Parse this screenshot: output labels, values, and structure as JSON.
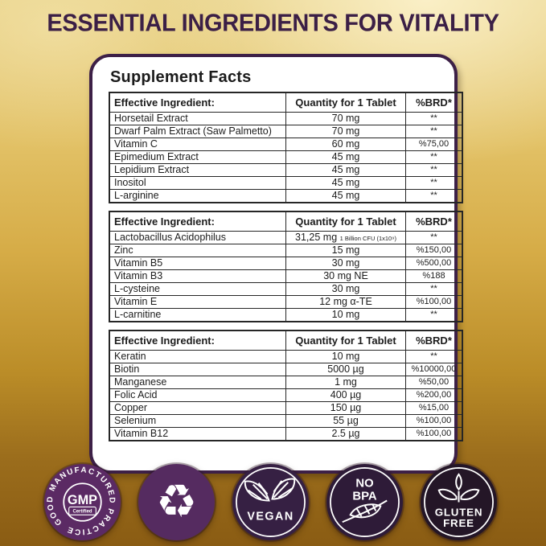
{
  "title": "ESSENTIAL INGREDIENTS FOR VITALITY",
  "card": {
    "heading": "Supplement Facts",
    "tables": [
      {
        "headers": [
          "Effective Ingredient:",
          "Quantity for 1 Tablet",
          "%BRD*"
        ],
        "rows": [
          [
            "Horsetail Extract",
            "70 mg",
            "**"
          ],
          [
            "Dwarf Palm Extract (Saw Palmetto)",
            "70 mg",
            "**"
          ],
          [
            "Vitamin C",
            "60 mg",
            "%75,00"
          ],
          [
            "Epimedium Extract",
            "45 mg",
            "**"
          ],
          [
            "Lepidium Extract",
            "45 mg",
            "**"
          ],
          [
            "Inositol",
            "45 mg",
            "**"
          ],
          [
            "L-arginine",
            "45 mg",
            "**"
          ]
        ]
      },
      {
        "headers": [
          "Effective Ingredient:",
          "Quantity for 1 Tablet",
          "%BRD*"
        ],
        "rows": [
          [
            "Lactobacillus Acidophilus",
            {
              "text": "31,25 mg",
              "note": "1 Billion CFU (1x10⁹)"
            },
            "**"
          ],
          [
            "Zinc",
            "15 mg",
            "%150,00"
          ],
          [
            "Vitamin B5",
            "30 mg",
            "%500,00"
          ],
          [
            "Vitamin B3",
            "30 mg NE",
            "%188"
          ],
          [
            "L-cysteine",
            "30 mg",
            "**"
          ],
          [
            "Vitamin E",
            "12 mg α-TE",
            "%100,00"
          ],
          [
            "L-carnitine",
            "10 mg",
            "**"
          ]
        ]
      },
      {
        "headers": [
          "Effective Ingredient:",
          "Quantity for 1 Tablet",
          "%BRD*"
        ],
        "rows": [
          [
            "Keratin",
            "10 mg",
            "**"
          ],
          [
            "Biotin",
            "5000 µg",
            "%10000,00"
          ],
          [
            "Manganese",
            "1 mg",
            "%50,00"
          ],
          [
            "Folic Acid",
            "400 µg",
            "%200,00"
          ],
          [
            "Copper",
            "150 µg",
            "%15,00"
          ],
          [
            "Selenium",
            "55 µg",
            "%100,00"
          ],
          [
            "Vitamin B12",
            "2.5 µg",
            "%100,00"
          ]
        ]
      }
    ]
  },
  "badges": {
    "gmp": {
      "circular_text": "GOOD MANUFACTURED PRACTICE",
      "center": "GMP",
      "sub": "Certified",
      "color": "#5b2a64"
    },
    "recycle": {
      "symbol": "♻",
      "color": "#552b60"
    },
    "vegan": {
      "label": "VEGAN",
      "color": "#362043"
    },
    "no_bpa": {
      "line1": "NO",
      "line2": "BPA",
      "color": "#2e1b38"
    },
    "gluten_free": {
      "line1": "GLUTEN",
      "line2": "FREE",
      "color": "#241627"
    }
  },
  "colors": {
    "accent_purple": "#3d2047",
    "title_text": "#3b1f46",
    "table_border": "#262626",
    "background_gold_top": "#e7d084",
    "background_gold_bottom": "#8a5c13"
  }
}
